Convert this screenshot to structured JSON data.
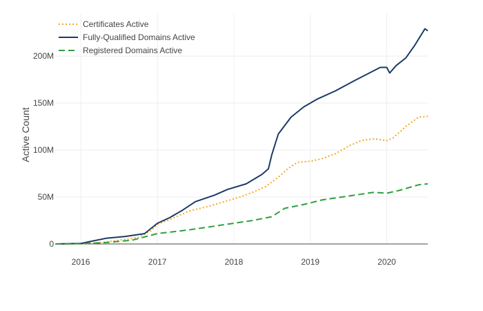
{
  "chart_data": {
    "type": "line",
    "title": "",
    "xlabel": "",
    "ylabel": "Active Count",
    "xlim": [
      "2015-09-01",
      "2020-07-15"
    ],
    "ylim": [
      0,
      245000000
    ],
    "grid": true,
    "legend_position": "top-left",
    "x_ticks": [
      {
        "value": "2016-01-01",
        "label": "2016"
      },
      {
        "value": "2017-01-01",
        "label": "2017"
      },
      {
        "value": "2018-01-01",
        "label": "2018"
      },
      {
        "value": "2019-01-01",
        "label": "2019"
      },
      {
        "value": "2020-01-01",
        "label": "2020"
      }
    ],
    "y_ticks": [
      {
        "value": 0,
        "label": "0"
      },
      {
        "value": 50000000,
        "label": "50M"
      },
      {
        "value": 100000000,
        "label": "100M"
      },
      {
        "value": 150000000,
        "label": "150M"
      },
      {
        "value": 200000000,
        "label": "200M"
      }
    ],
    "series": [
      {
        "name": "Certificates Active",
        "color": "#f5a623",
        "dash": "dotted",
        "points": [
          [
            "2015-09-01",
            0
          ],
          [
            "2016-01-01",
            300000
          ],
          [
            "2016-04-01",
            1500000
          ],
          [
            "2016-07-01",
            4000000
          ],
          [
            "2016-10-01",
            7000000
          ],
          [
            "2016-12-01",
            14000000
          ],
          [
            "2017-01-01",
            21000000
          ],
          [
            "2017-03-01",
            26000000
          ],
          [
            "2017-06-01",
            35000000
          ],
          [
            "2017-09-01",
            40000000
          ],
          [
            "2017-12-01",
            46000000
          ],
          [
            "2018-02-01",
            50000000
          ],
          [
            "2018-04-01",
            55000000
          ],
          [
            "2018-06-01",
            61000000
          ],
          [
            "2018-08-01",
            71000000
          ],
          [
            "2018-09-15",
            80000000
          ],
          [
            "2018-11-01",
            87000000
          ],
          [
            "2019-01-01",
            88000000
          ],
          [
            "2019-03-01",
            91000000
          ],
          [
            "2019-05-01",
            96000000
          ],
          [
            "2019-07-01",
            104000000
          ],
          [
            "2019-09-01",
            110000000
          ],
          [
            "2019-11-01",
            112000000
          ],
          [
            "2020-01-01",
            110000000
          ],
          [
            "2020-02-01",
            113000000
          ],
          [
            "2020-04-01",
            125000000
          ],
          [
            "2020-06-01",
            135000000
          ],
          [
            "2020-07-15",
            136000000
          ]
        ]
      },
      {
        "name": "Fully-Qualified Domains Active",
        "color": "#1a3a66",
        "dash": "solid",
        "points": [
          [
            "2015-09-01",
            0
          ],
          [
            "2016-01-01",
            500000
          ],
          [
            "2016-02-01",
            2000000
          ],
          [
            "2016-05-01",
            6000000
          ],
          [
            "2016-08-01",
            8000000
          ],
          [
            "2016-11-01",
            11000000
          ],
          [
            "2017-01-01",
            22000000
          ],
          [
            "2017-03-01",
            28000000
          ],
          [
            "2017-05-01",
            36000000
          ],
          [
            "2017-07-01",
            45000000
          ],
          [
            "2017-10-01",
            52000000
          ],
          [
            "2017-12-01",
            58000000
          ],
          [
            "2018-03-01",
            64000000
          ],
          [
            "2018-05-15",
            74000000
          ],
          [
            "2018-06-15",
            80000000
          ],
          [
            "2018-07-01",
            95000000
          ],
          [
            "2018-08-01",
            117000000
          ],
          [
            "2018-10-01",
            135000000
          ],
          [
            "2018-12-01",
            146000000
          ],
          [
            "2019-02-01",
            154000000
          ],
          [
            "2019-05-01",
            163000000
          ],
          [
            "2019-08-01",
            174000000
          ],
          [
            "2019-10-01",
            181000000
          ],
          [
            "2019-12-01",
            188000000
          ],
          [
            "2020-01-01",
            188000000
          ],
          [
            "2020-01-15",
            182000000
          ],
          [
            "2020-02-15",
            190000000
          ],
          [
            "2020-04-01",
            198000000
          ],
          [
            "2020-05-15",
            212000000
          ],
          [
            "2020-07-01",
            229000000
          ],
          [
            "2020-07-15",
            227000000
          ]
        ]
      },
      {
        "name": "Registered Domains Active",
        "color": "#2e9e3e",
        "dash": "dashed",
        "points": [
          [
            "2015-09-01",
            0
          ],
          [
            "2016-01-01",
            200000
          ],
          [
            "2016-05-01",
            1500000
          ],
          [
            "2016-09-01",
            4000000
          ],
          [
            "2017-01-01",
            11000000
          ],
          [
            "2017-06-01",
            15000000
          ],
          [
            "2017-11-01",
            20000000
          ],
          [
            "2018-04-01",
            25000000
          ],
          [
            "2018-07-01",
            29000000
          ],
          [
            "2018-09-01",
            38000000
          ],
          [
            "2018-12-01",
            42000000
          ],
          [
            "2019-03-01",
            47000000
          ],
          [
            "2019-07-01",
            51000000
          ],
          [
            "2019-11-01",
            55000000
          ],
          [
            "2020-01-01",
            54000000
          ],
          [
            "2020-03-01",
            57000000
          ],
          [
            "2020-06-01",
            63000000
          ],
          [
            "2020-07-15",
            64000000
          ]
        ]
      }
    ]
  }
}
